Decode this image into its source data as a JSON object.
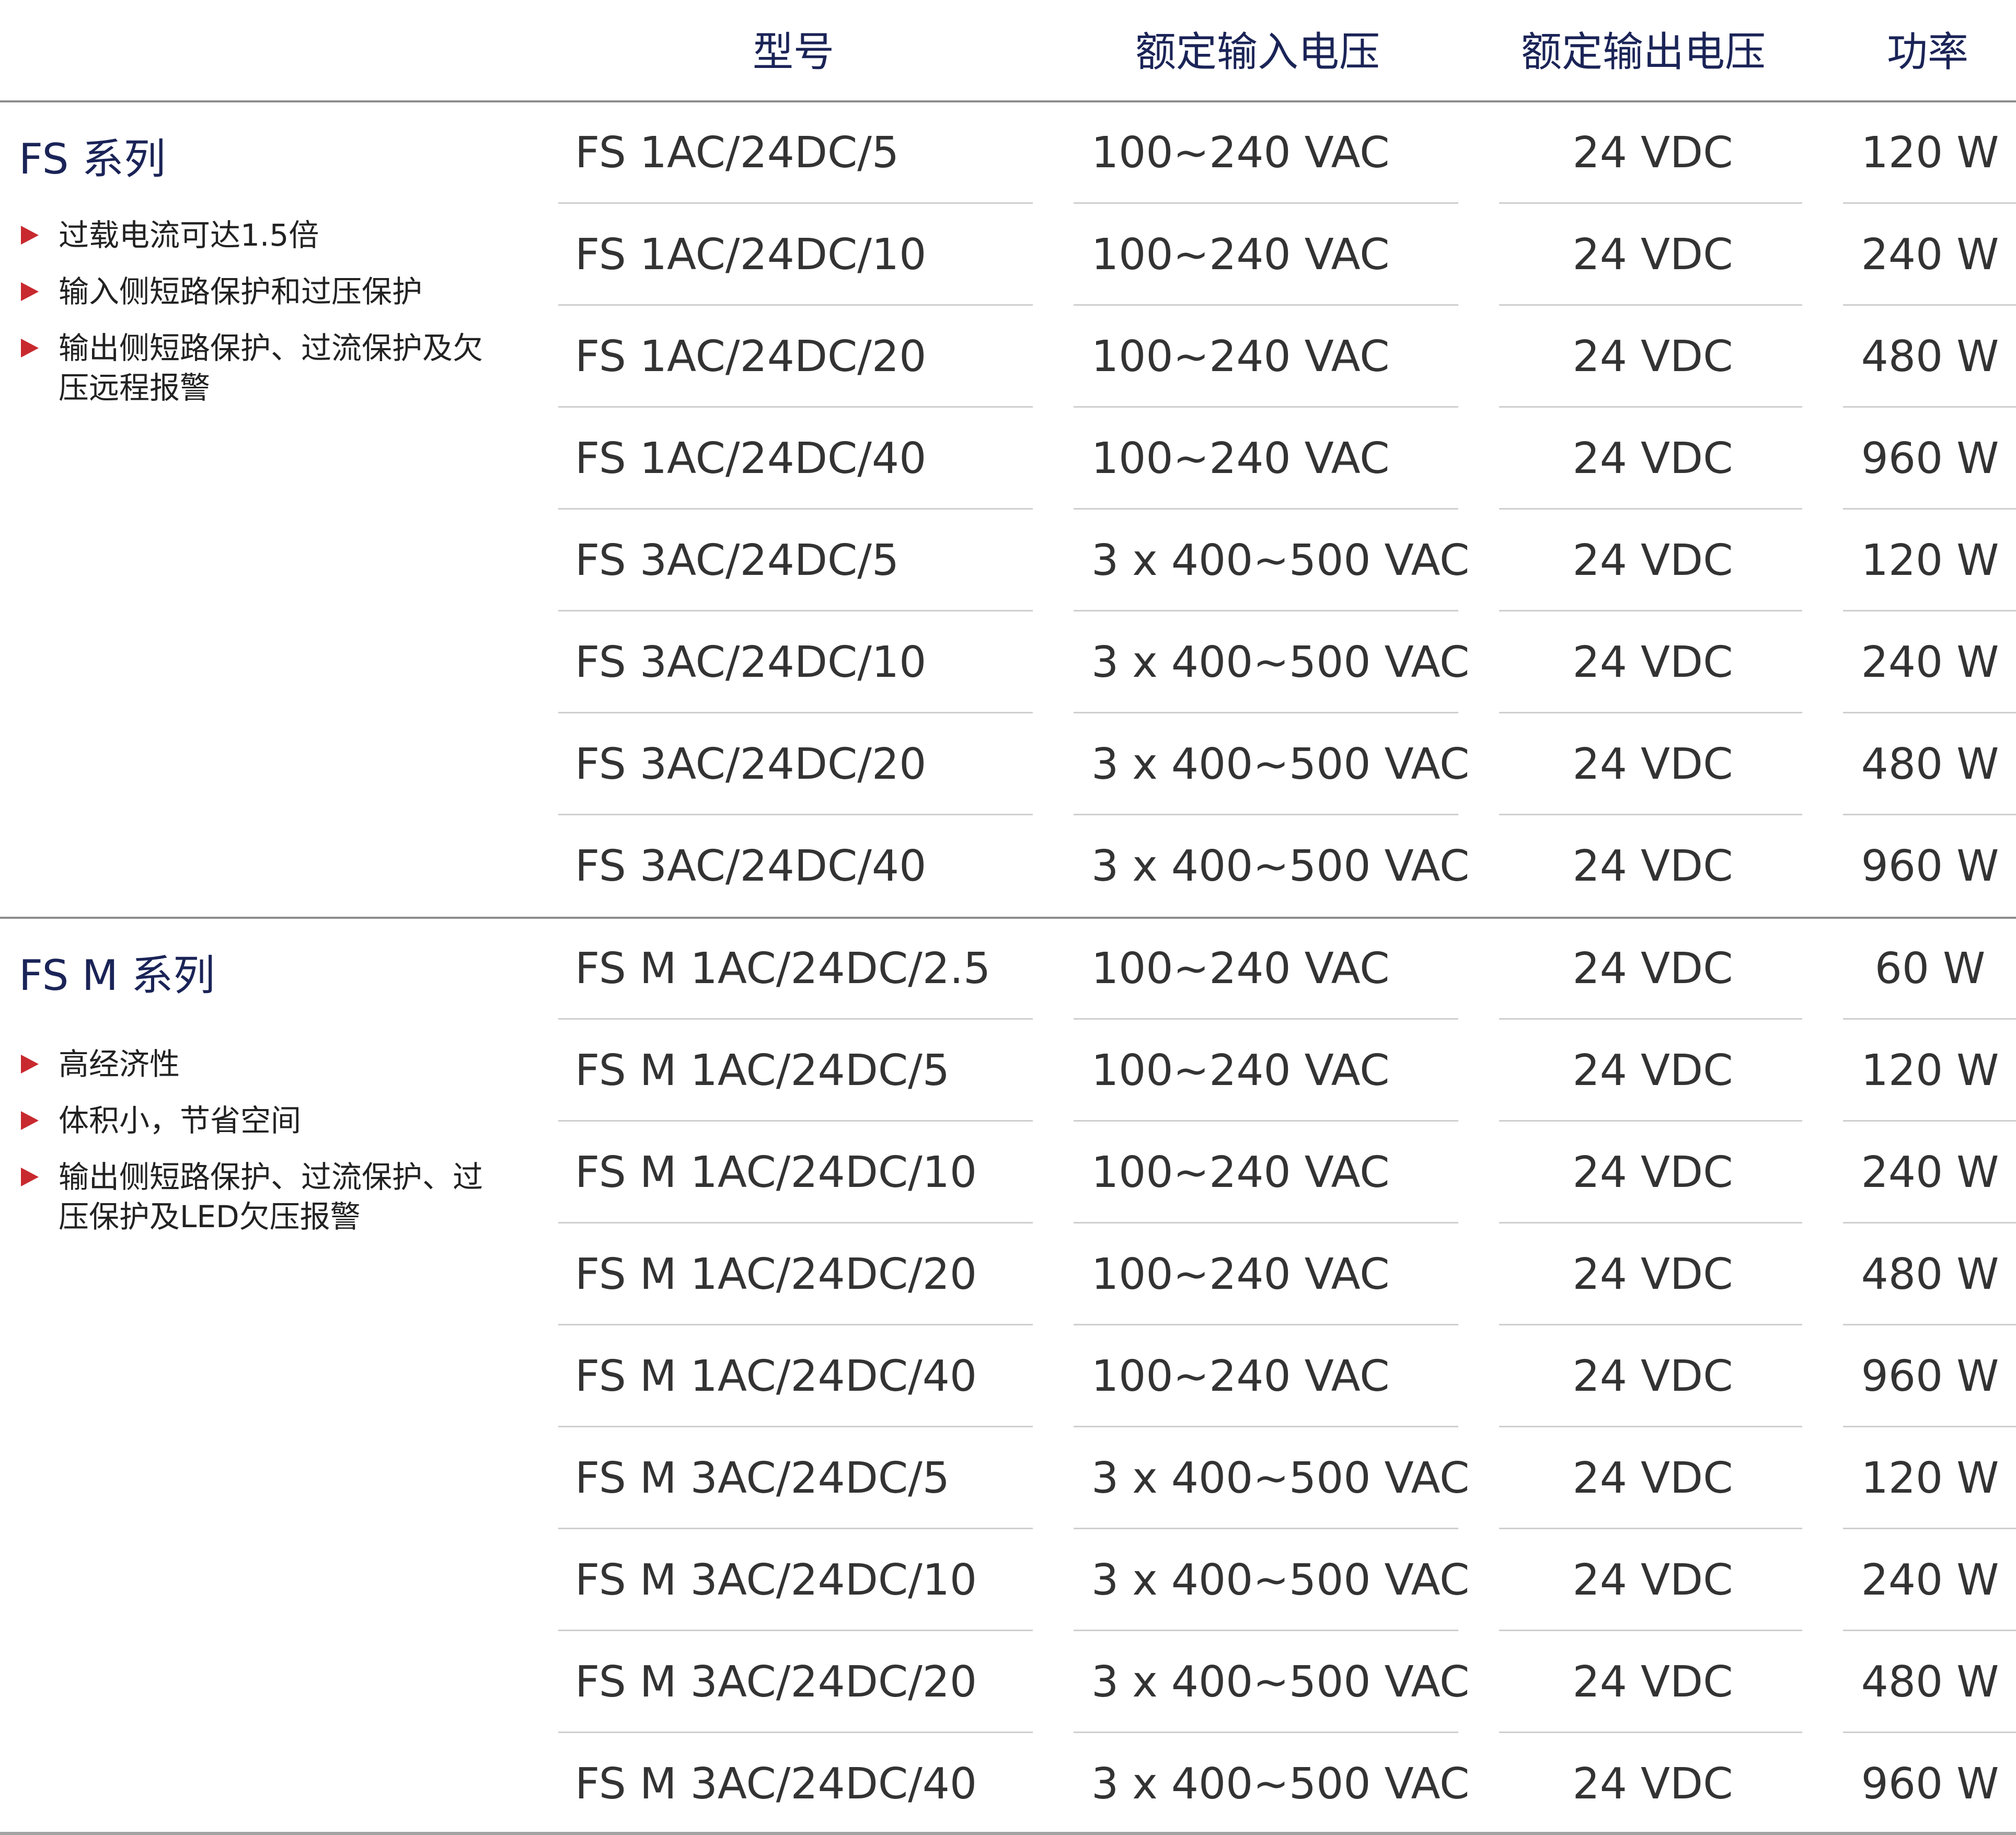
{
  "header": {
    "model": "型号",
    "input_voltage": "额定输入电压",
    "output_voltage": "额定输出电压",
    "power": "功率"
  },
  "groups": [
    {
      "title": "FS 系列",
      "features": [
        "过载电流可达1.5倍",
        "输入侧短路保护和过压保护",
        "输出侧短路保护、过流保护及欠压远程报警"
      ],
      "rows": [
        {
          "model": "FS 1AC/24DC/5",
          "input": "100~240 VAC",
          "output": "24 VDC",
          "power": "120 W"
        },
        {
          "model": "FS 1AC/24DC/10",
          "input": "100~240 VAC",
          "output": "24 VDC",
          "power": "240 W"
        },
        {
          "model": "FS 1AC/24DC/20",
          "input": "100~240 VAC",
          "output": "24 VDC",
          "power": "480 W"
        },
        {
          "model": "FS 1AC/24DC/40",
          "input": "100~240 VAC",
          "output": "24 VDC",
          "power": "960 W"
        },
        {
          "model": "FS 3AC/24DC/5",
          "input": "3 x 400~500 VAC",
          "output": "24 VDC",
          "power": "120 W"
        },
        {
          "model": "FS 3AC/24DC/10",
          "input": "3 x 400~500 VAC",
          "output": "24 VDC",
          "power": "240 W"
        },
        {
          "model": "FS 3AC/24DC/20",
          "input": "3 x 400~500 VAC",
          "output": "24 VDC",
          "power": "480 W"
        },
        {
          "model": "FS 3AC/24DC/40",
          "input": "3 x 400~500 VAC",
          "output": "24 VDC",
          "power": "960 W"
        }
      ]
    },
    {
      "title": "FS M 系列",
      "features": [
        "高经济性",
        "体积小，节省空间",
        "输出侧短路保护、过流保护、过压保护及LED欠压报警"
      ],
      "rows": [
        {
          "model": "FS M 1AC/24DC/2.5",
          "input": "100~240 VAC",
          "output": "24 VDC",
          "power": "60 W"
        },
        {
          "model": "FS M 1AC/24DC/5",
          "input": "100~240 VAC",
          "output": "24 VDC",
          "power": "120 W"
        },
        {
          "model": "FS M 1AC/24DC/10",
          "input": "100~240 VAC",
          "output": "24 VDC",
          "power": "240 W"
        },
        {
          "model": "FS M 1AC/24DC/20",
          "input": "100~240 VAC",
          "output": "24 VDC",
          "power": "480 W"
        },
        {
          "model": "FS M 1AC/24DC/40",
          "input": "100~240 VAC",
          "output": "24 VDC",
          "power": "960 W"
        },
        {
          "model": "FS M 3AC/24DC/5",
          "input": "3 x 400~500 VAC",
          "output": "24 VDC",
          "power": "120 W"
        },
        {
          "model": "FS M 3AC/24DC/10",
          "input": "3 x 400~500 VAC",
          "output": "24 VDC",
          "power": "240 W"
        },
        {
          "model": "FS M 3AC/24DC/20",
          "input": "3 x 400~500 VAC",
          "output": "24 VDC",
          "power": "480 W"
        },
        {
          "model": "FS M 3AC/24DC/40",
          "input": "3 x 400~500 VAC",
          "output": "24 VDC",
          "power": "960 W"
        }
      ]
    }
  ],
  "colors": {
    "heading": "#1b2457",
    "text": "#333333",
    "bullet": "#c8292f",
    "rule": "#8d8d8d",
    "separator": "#cfcfcf"
  }
}
